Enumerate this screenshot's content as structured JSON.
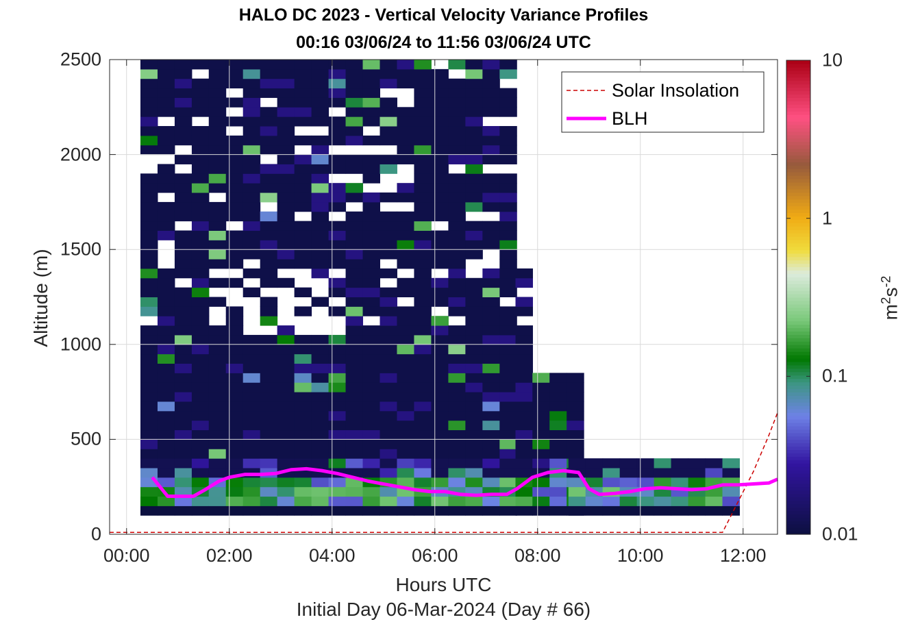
{
  "chart_data": {
    "type": "heatmap",
    "title": "HALO DC 2023 - Vertical Velocity Variance Profiles",
    "subtitle": "00:16 03/06/24 to 11:56 03/06/24  UTC",
    "xlabel": "Hours UTC",
    "xsublabel": "Initial Day 06-Mar-2024 (Day # 66)",
    "ylabel": "Altitude (m)",
    "colorbar_label_base": "m",
    "colorbar_label_sup1": "2",
    "colorbar_label_mid": "s",
    "colorbar_label_sup2": "-2",
    "xlim": [
      -0.33,
      12.67
    ],
    "ylim": [
      0,
      2500
    ],
    "x_ticks": [
      0,
      2,
      4,
      6,
      8,
      10,
      12
    ],
    "x_tick_labels": [
      "00:00",
      "02:00",
      "04:00",
      "06:00",
      "08:00",
      "10:00",
      "12:00"
    ],
    "y_ticks": [
      0,
      500,
      1000,
      1500,
      2000,
      2500
    ],
    "y_tick_labels": [
      "0",
      "500",
      "1000",
      "1500",
      "2000",
      "2500"
    ],
    "color_scale": "log",
    "clim": [
      0.01,
      10
    ],
    "colorbar_ticks": [
      0.01,
      0.1,
      1,
      10
    ],
    "colorbar_tick_labels": [
      "0.01",
      "0.1",
      "1",
      "10"
    ],
    "grid": true,
    "legend_position": "top-right",
    "legend": [
      {
        "label": "Solar Insolation",
        "style": "dashed",
        "color": "#cc0000"
      },
      {
        "label": "BLH",
        "style": "solid",
        "color": "#ff00ff"
      }
    ],
    "time_bin_hours": 0.333,
    "height_bin_m": 50,
    "grid_coverage": [
      {
        "time_start": 0.27,
        "time_end": 1.6,
        "alt_max": 2500
      },
      {
        "time_start": 1.6,
        "time_end": 7.57,
        "alt_max": 2500
      },
      {
        "time_start": 7.57,
        "time_end": 7.9,
        "alt_max": 1400
      },
      {
        "time_start": 7.9,
        "time_end": 8.6,
        "alt_max": 850
      },
      {
        "time_start": 8.6,
        "time_end": 11.93,
        "alt_max": 400
      }
    ],
    "variance_ranges": [
      {
        "band": "100-150 m",
        "value": 0.01
      },
      {
        "band": "150-300 m",
        "value_range": [
          0.05,
          0.2
        ]
      },
      {
        "band": "300-2500 m",
        "value_typical": 0.012
      }
    ],
    "blh": {
      "x": [
        0.5,
        0.8,
        1.0,
        1.3,
        1.5,
        1.8,
        2.0,
        2.3,
        2.6,
        2.9,
        3.2,
        3.5,
        3.8,
        4.1,
        4.4,
        4.7,
        5.0,
        5.3,
        5.6,
        5.9,
        6.2,
        6.5,
        6.8,
        7.1,
        7.4,
        7.6,
        7.9,
        8.2,
        8.5,
        8.8,
        9.0,
        9.2,
        9.5,
        9.8,
        10.1,
        10.4,
        10.7,
        11.0,
        11.3,
        11.6,
        11.9,
        12.2,
        12.5,
        12.67
      ],
      "y": [
        300,
        200,
        200,
        200,
        230,
        280,
        300,
        315,
        315,
        320,
        340,
        345,
        335,
        320,
        300,
        280,
        265,
        250,
        235,
        225,
        225,
        210,
        205,
        210,
        210,
        240,
        300,
        325,
        335,
        325,
        240,
        210,
        215,
        225,
        240,
        245,
        240,
        235,
        240,
        260,
        260,
        265,
        270,
        290
      ]
    },
    "solar_insolation": {
      "x": [
        -0.33,
        11.6,
        11.9,
        12.2,
        12.5,
        12.67
      ],
      "y": [
        10,
        10,
        170,
        330,
        520,
        640
      ]
    }
  }
}
